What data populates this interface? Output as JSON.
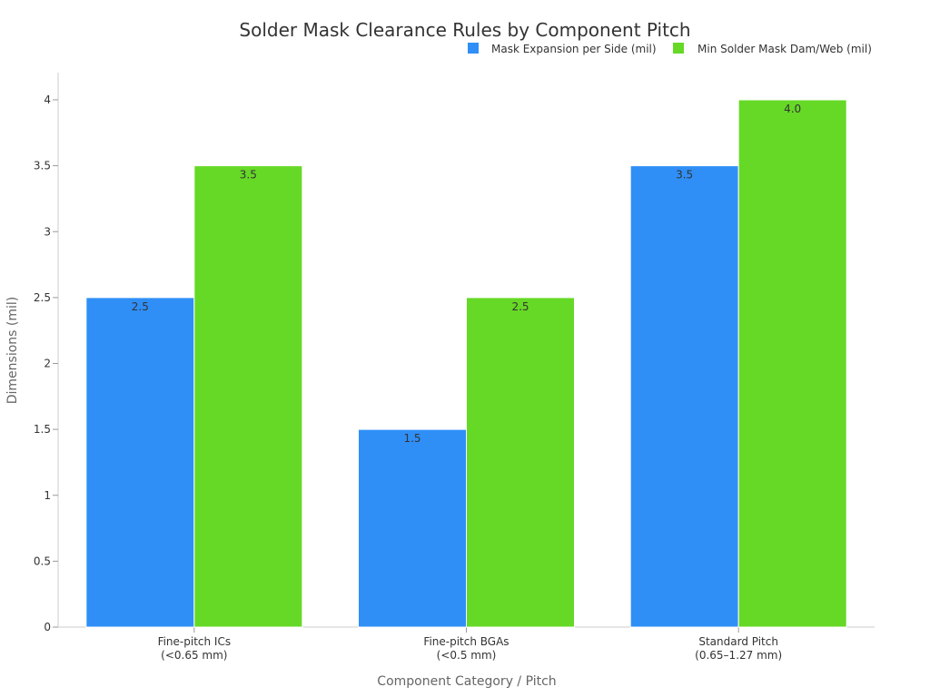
{
  "chart_data": {
    "type": "bar",
    "title": "Solder Mask Clearance Rules by Component Pitch",
    "xlabel": "Component Category / Pitch",
    "ylabel": "Dimensions (mil)",
    "categories": [
      [
        "Fine-pitch ICs",
        "(<0.65 mm)"
      ],
      [
        "Fine-pitch BGAs",
        "(<0.5 mm)"
      ],
      [
        "Standard Pitch",
        "(0.65–1.27 mm)"
      ]
    ],
    "series": [
      {
        "name": "Mask Expansion per Side (mil)",
        "color": "#2f8ff7",
        "values": [
          2.5,
          1.5,
          3.5
        ],
        "labels": [
          "2.5",
          "1.5",
          "3.5"
        ]
      },
      {
        "name": "Min Solder Mask Dam/Web (mil)",
        "color": "#66d926",
        "values": [
          3.5,
          2.5,
          4.0
        ],
        "labels": [
          "3.5",
          "2.5",
          "4.0"
        ]
      }
    ],
    "ylim": [
      0,
      4.2
    ],
    "yticks": [
      0,
      0.5,
      1,
      1.5,
      2,
      2.5,
      3,
      3.5,
      4
    ],
    "ytick_labels": [
      "0",
      "0.5",
      "1",
      "1.5",
      "2",
      "2.5",
      "3",
      "3.5",
      "4"
    ],
    "grid": false,
    "legend_position": "top-right"
  }
}
